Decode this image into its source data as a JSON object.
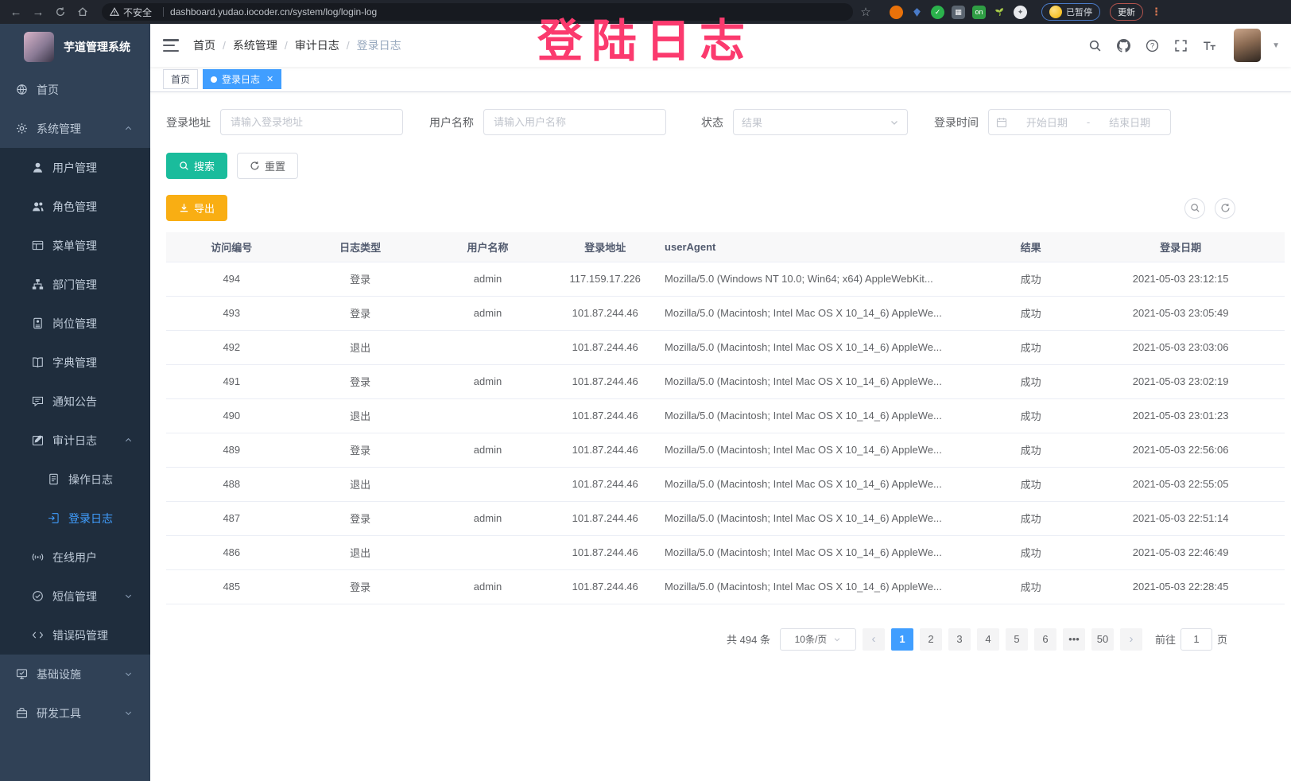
{
  "overlay": {
    "watermark": "登陆日志"
  },
  "colors": {
    "accent": "#409EFF",
    "search_button": "#1ABC9C",
    "export_button": "#F9AE13",
    "watermark": "#FB3A6E",
    "sidebar_bg": "#304156",
    "submenu_bg": "#1F2D3D"
  },
  "browser": {
    "security_label": "不安全",
    "url": "dashboard.yudao.iocoder.cn/system/log/login-log",
    "profile_status": "已暂停",
    "update_button": "更新"
  },
  "sidebar": {
    "app_title": "芋道管理系统",
    "items": [
      {
        "label": "首页",
        "icon": "globe",
        "level": 1
      },
      {
        "label": "系统管理",
        "icon": "gear",
        "level": 1,
        "arrow": "up"
      },
      {
        "label": "用户管理",
        "icon": "user",
        "level": 2
      },
      {
        "label": "角色管理",
        "icon": "users",
        "level": 2
      },
      {
        "label": "菜单管理",
        "icon": "menu-tree",
        "level": 2
      },
      {
        "label": "部门管理",
        "icon": "org-tree",
        "level": 2
      },
      {
        "label": "岗位管理",
        "icon": "badge",
        "level": 2
      },
      {
        "label": "字典管理",
        "icon": "book",
        "level": 2
      },
      {
        "label": "通知公告",
        "icon": "megaphone",
        "level": 2
      },
      {
        "label": "审计日志",
        "icon": "edit-log",
        "level": 2,
        "arrow": "up"
      },
      {
        "label": "操作日志",
        "icon": "doc",
        "level": 3
      },
      {
        "label": "登录日志",
        "icon": "login",
        "level": 3,
        "active": true
      },
      {
        "label": "在线用户",
        "icon": "online",
        "level": 2
      },
      {
        "label": "短信管理",
        "icon": "sms-shield",
        "level": 2,
        "arrow": "down"
      },
      {
        "label": "错误码管理",
        "icon": "code",
        "level": 2
      },
      {
        "label": "基础设施",
        "icon": "monitor",
        "level": 1,
        "arrow": "down"
      },
      {
        "label": "研发工具",
        "icon": "toolbox",
        "level": 1,
        "arrow": "down"
      }
    ]
  },
  "navbar": {
    "breadcrumb": [
      "首页",
      "系统管理",
      "审计日志",
      "登录日志"
    ]
  },
  "tags": [
    {
      "label": "首页",
      "active": false,
      "closable": false
    },
    {
      "label": "登录日志",
      "active": true,
      "closable": true
    }
  ],
  "filters": {
    "login_address_label": "登录地址",
    "login_address_placeholder": "请输入登录地址",
    "username_label": "用户名称",
    "username_placeholder": "请输入用户名称",
    "status_label": "状态",
    "status_placeholder": "结果",
    "login_time_label": "登录时间",
    "date_start_placeholder": "开始日期",
    "date_separator": "-",
    "date_end_placeholder": "结束日期",
    "search_button": "搜索",
    "reset_button": "重置"
  },
  "toolbar": {
    "export_button": "导出"
  },
  "table": {
    "columns": [
      "访问编号",
      "日志类型",
      "用户名称",
      "登录地址",
      "userAgent",
      "结果",
      "登录日期"
    ],
    "rows": [
      {
        "id": "494",
        "type": "登录",
        "user": "admin",
        "ip": "117.159.17.226",
        "ua": "Mozilla/5.0 (Windows NT 10.0; Win64; x64) AppleWebKit...",
        "result": "成功",
        "date": "2021-05-03 23:12:15"
      },
      {
        "id": "493",
        "type": "登录",
        "user": "admin",
        "ip": "101.87.244.46",
        "ua": "Mozilla/5.0 (Macintosh; Intel Mac OS X 10_14_6) AppleWe...",
        "result": "成功",
        "date": "2021-05-03 23:05:49"
      },
      {
        "id": "492",
        "type": "退出",
        "user": "",
        "ip": "101.87.244.46",
        "ua": "Mozilla/5.0 (Macintosh; Intel Mac OS X 10_14_6) AppleWe...",
        "result": "成功",
        "date": "2021-05-03 23:03:06"
      },
      {
        "id": "491",
        "type": "登录",
        "user": "admin",
        "ip": "101.87.244.46",
        "ua": "Mozilla/5.0 (Macintosh; Intel Mac OS X 10_14_6) AppleWe...",
        "result": "成功",
        "date": "2021-05-03 23:02:19"
      },
      {
        "id": "490",
        "type": "退出",
        "user": "",
        "ip": "101.87.244.46",
        "ua": "Mozilla/5.0 (Macintosh; Intel Mac OS X 10_14_6) AppleWe...",
        "result": "成功",
        "date": "2021-05-03 23:01:23"
      },
      {
        "id": "489",
        "type": "登录",
        "user": "admin",
        "ip": "101.87.244.46",
        "ua": "Mozilla/5.0 (Macintosh; Intel Mac OS X 10_14_6) AppleWe...",
        "result": "成功",
        "date": "2021-05-03 22:56:06"
      },
      {
        "id": "488",
        "type": "退出",
        "user": "",
        "ip": "101.87.244.46",
        "ua": "Mozilla/5.0 (Macintosh; Intel Mac OS X 10_14_6) AppleWe...",
        "result": "成功",
        "date": "2021-05-03 22:55:05"
      },
      {
        "id": "487",
        "type": "登录",
        "user": "admin",
        "ip": "101.87.244.46",
        "ua": "Mozilla/5.0 (Macintosh; Intel Mac OS X 10_14_6) AppleWe...",
        "result": "成功",
        "date": "2021-05-03 22:51:14"
      },
      {
        "id": "486",
        "type": "退出",
        "user": "",
        "ip": "101.87.244.46",
        "ua": "Mozilla/5.0 (Macintosh; Intel Mac OS X 10_14_6) AppleWe...",
        "result": "成功",
        "date": "2021-05-03 22:46:49"
      },
      {
        "id": "485",
        "type": "登录",
        "user": "admin",
        "ip": "101.87.244.46",
        "ua": "Mozilla/5.0 (Macintosh; Intel Mac OS X 10_14_6) AppleWe...",
        "result": "成功",
        "date": "2021-05-03 22:28:45"
      }
    ]
  },
  "pagination": {
    "total": "共 494 条",
    "page_size": "10条/页",
    "pages": [
      "1",
      "2",
      "3",
      "4",
      "5",
      "6",
      "•••",
      "50"
    ],
    "active_page": "1",
    "prev": "‹",
    "next": "›",
    "goto_label": "前往",
    "goto_value": "1",
    "page_suffix": "页"
  }
}
